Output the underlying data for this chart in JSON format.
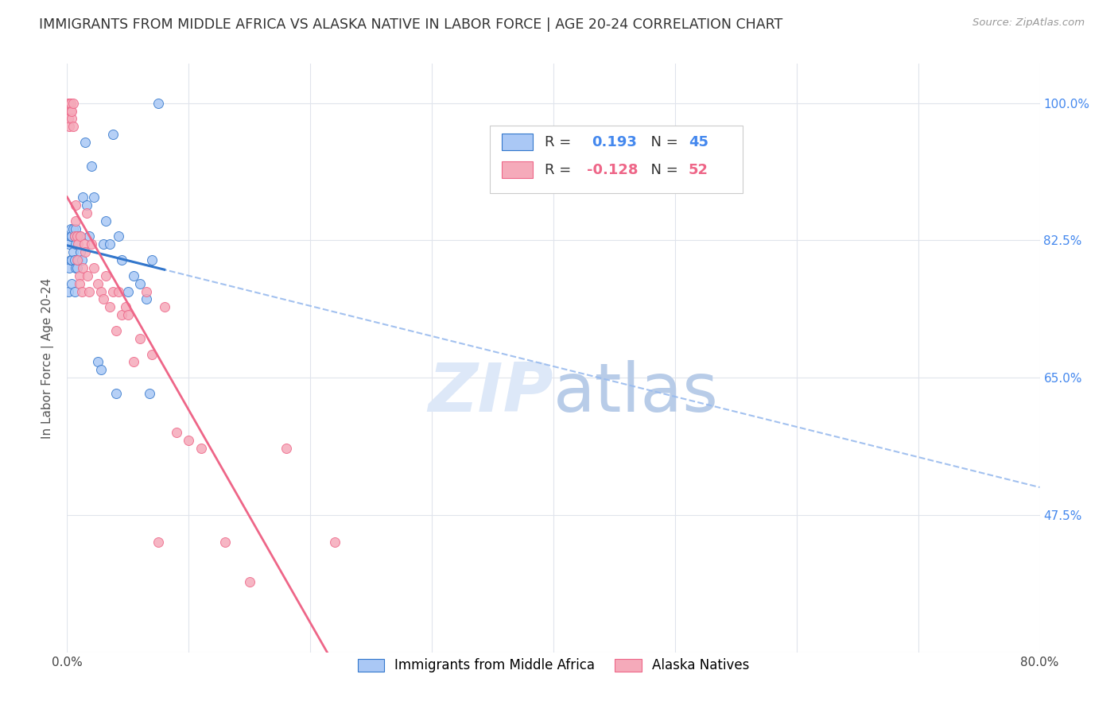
{
  "title": "IMMIGRANTS FROM MIDDLE AFRICA VS ALASKA NATIVE IN LABOR FORCE | AGE 20-24 CORRELATION CHART",
  "source": "Source: ZipAtlas.com",
  "ylabel": "In Labor Force | Age 20-24",
  "xlim": [
    0.0,
    0.8
  ],
  "ylim": [
    0.3,
    1.05
  ],
  "x_ticks": [
    0.0,
    0.1,
    0.2,
    0.3,
    0.4,
    0.5,
    0.6,
    0.7,
    0.8
  ],
  "x_tick_labels": [
    "0.0%",
    "",
    "",
    "",
    "",
    "",
    "",
    "",
    "80.0%"
  ],
  "y_ticks": [
    0.3,
    0.475,
    0.65,
    0.825,
    1.0
  ],
  "y_tick_labels_right": [
    "",
    "47.5%",
    "65.0%",
    "82.5%",
    "100.0%"
  ],
  "r_blue": 0.193,
  "n_blue": 45,
  "r_pink": -0.128,
  "n_pink": 52,
  "blue_color": "#aac8f5",
  "pink_color": "#f5aaba",
  "trend_blue_solid_color": "#3377cc",
  "trend_blue_dash_color": "#99bbee",
  "trend_pink_color": "#ee6688",
  "watermark_color": "#dde8f8",
  "blue_scatter_x": [
    0.001,
    0.002,
    0.002,
    0.003,
    0.003,
    0.003,
    0.004,
    0.004,
    0.004,
    0.005,
    0.005,
    0.006,
    0.006,
    0.006,
    0.007,
    0.007,
    0.007,
    0.008,
    0.008,
    0.009,
    0.01,
    0.011,
    0.012,
    0.013,
    0.015,
    0.016,
    0.018,
    0.02,
    0.022,
    0.025,
    0.028,
    0.03,
    0.032,
    0.035,
    0.038,
    0.04,
    0.042,
    0.045,
    0.05,
    0.055,
    0.06,
    0.065,
    0.068,
    0.07,
    0.075
  ],
  "blue_scatter_y": [
    0.76,
    0.79,
    0.82,
    0.8,
    0.83,
    0.84,
    0.77,
    0.8,
    0.83,
    0.81,
    0.84,
    0.76,
    0.8,
    0.83,
    0.79,
    0.82,
    0.84,
    0.79,
    0.83,
    0.8,
    0.83,
    0.81,
    0.8,
    0.88,
    0.95,
    0.87,
    0.83,
    0.92,
    0.88,
    0.67,
    0.66,
    0.82,
    0.85,
    0.82,
    0.96,
    0.63,
    0.83,
    0.8,
    0.76,
    0.78,
    0.77,
    0.75,
    0.63,
    0.8,
    1.0
  ],
  "pink_scatter_x": [
    0.001,
    0.001,
    0.002,
    0.002,
    0.003,
    0.003,
    0.004,
    0.004,
    0.005,
    0.005,
    0.006,
    0.007,
    0.007,
    0.008,
    0.008,
    0.009,
    0.01,
    0.01,
    0.011,
    0.012,
    0.013,
    0.014,
    0.015,
    0.016,
    0.017,
    0.018,
    0.02,
    0.022,
    0.025,
    0.028,
    0.03,
    0.032,
    0.035,
    0.038,
    0.04,
    0.042,
    0.045,
    0.048,
    0.05,
    0.055,
    0.06,
    0.065,
    0.07,
    0.075,
    0.08,
    0.09,
    0.1,
    0.11,
    0.13,
    0.15,
    0.18,
    0.22
  ],
  "pink_scatter_y": [
    0.98,
    1.0,
    0.97,
    1.0,
    0.99,
    1.0,
    0.98,
    0.99,
    0.97,
    1.0,
    0.83,
    0.87,
    0.85,
    0.8,
    0.83,
    0.82,
    0.78,
    0.77,
    0.83,
    0.76,
    0.79,
    0.82,
    0.81,
    0.86,
    0.78,
    0.76,
    0.82,
    0.79,
    0.77,
    0.76,
    0.75,
    0.78,
    0.74,
    0.76,
    0.71,
    0.76,
    0.73,
    0.74,
    0.73,
    0.67,
    0.7,
    0.76,
    0.68,
    0.44,
    0.74,
    0.58,
    0.57,
    0.56,
    0.44,
    0.39,
    0.56,
    0.44
  ],
  "background_color": "#ffffff",
  "grid_color": "#e0e4ec"
}
